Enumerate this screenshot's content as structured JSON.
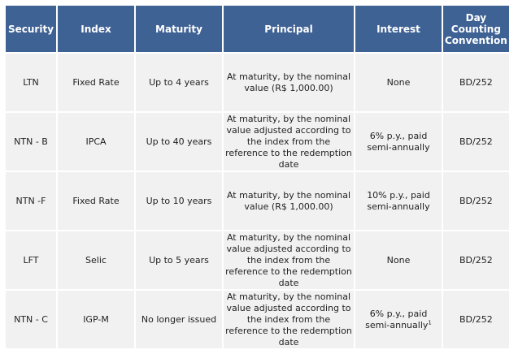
{
  "headers": [
    "Security",
    "Index",
    "Maturity",
    "Principal",
    "Interest",
    "Day Counting Convention"
  ],
  "rows": [
    {
      "security": "LTN",
      "index": "Fixed Rate",
      "maturity": "Up to 4 years",
      "principal": "At maturity, by the nominal value (R$ 1,000.00)",
      "interest": "None",
      "interest_note": "",
      "convention": "BD/252"
    },
    {
      "security": "NTN - B",
      "index": "IPCA",
      "maturity": "Up to 40 years",
      "principal": "At maturity, by the nominal value adjusted according to the index from the reference to the redemption date",
      "interest": "6% p.y., paid semi-annually",
      "interest_note": "",
      "convention": "BD/252"
    },
    {
      "security": "NTN -F",
      "index": "Fixed Rate",
      "maturity": "Up to 10 years",
      "principal": "At maturity, by the nominal value (R$ 1,000.00)",
      "interest": "10% p.y., paid semi-annually",
      "interest_note": "",
      "convention": "BD/252"
    },
    {
      "security": "LFT",
      "index": "Selic",
      "maturity": "Up to 5 years",
      "principal": "At maturity, by the nominal value adjusted according to the index from the reference to the redemption date",
      "interest": "None",
      "interest_note": "",
      "convention": "BD/252"
    },
    {
      "security": "NTN - C",
      "index": "IGP-M",
      "maturity": "No longer issued",
      "principal": "At maturity, by the nominal value adjusted according to the index from the reference to the redemption date",
      "interest": "6% p.y., paid semi-annually",
      "interest_note": "1",
      "convention": "BD/252"
    }
  ]
}
